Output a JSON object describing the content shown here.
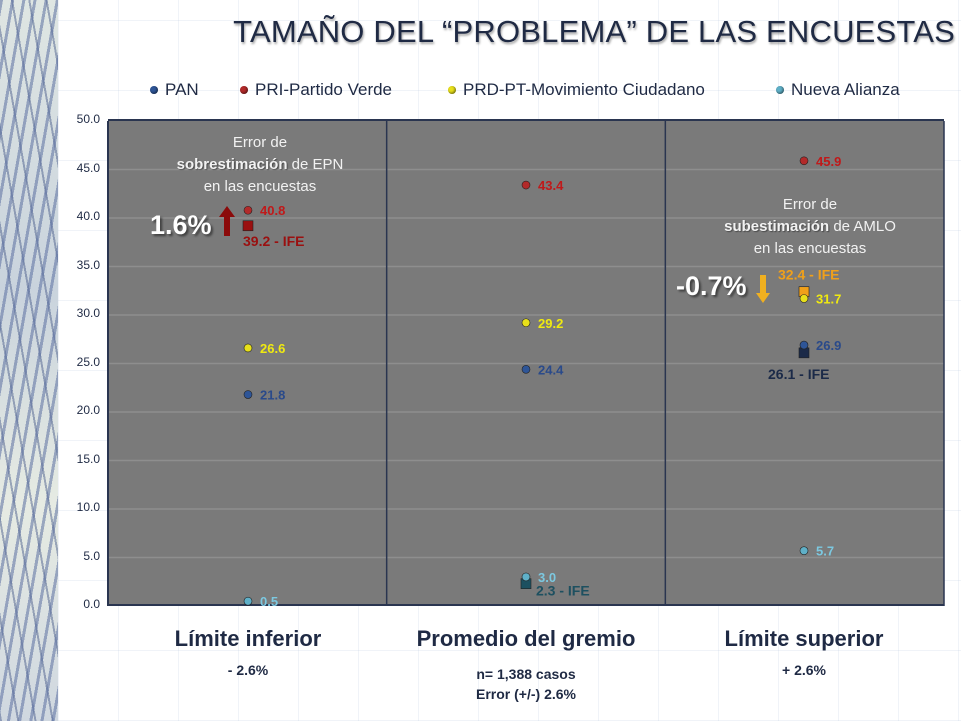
{
  "chart_data": {
    "type": "scatter",
    "title": "TAMAÑO DEL “PROBLEMA” DE LAS ENCUESTAS",
    "xlabel": "",
    "ylabel": "",
    "ylim": [
      0,
      50
    ],
    "yticks": [
      "0.0",
      "5.0",
      "10.0",
      "15.0",
      "20.0",
      "25.0",
      "30.0",
      "35.0",
      "40.0",
      "45.0",
      "50.0"
    ],
    "grid": true,
    "legend_position": "top",
    "categories": [
      "Límite inferior",
      "Promedio del gremio",
      "Límite superior"
    ],
    "category_subtitles": [
      [
        "- 2.6%"
      ],
      [
        "n= 1,388 casos",
        "Error (+/-) 2.6%"
      ],
      [
        "+ 2.6%"
      ]
    ],
    "series": [
      {
        "name": "PAN",
        "color": "#2e5597",
        "label_color": "#2a4a8a",
        "values": [
          21.8,
          24.4,
          26.9
        ]
      },
      {
        "name": "PRI-Partido Verde",
        "color": "#b22a2a",
        "label_color": "#c0191a",
        "values": [
          40.8,
          43.4,
          45.9
        ]
      },
      {
        "name": "PRD-PT-Movimiento Ciudadano",
        "color": "#e8e01a",
        "label_color": "#f0ea10",
        "values": [
          26.6,
          29.2,
          31.7
        ]
      },
      {
        "name": "Nueva Alianza",
        "color": "#5fb0c8",
        "label_color": "#7cc8e0",
        "values": [
          0.5,
          3.0,
          5.7
        ]
      }
    ],
    "ife_markers": [
      {
        "label": "39.2 - IFE",
        "value": 39.2,
        "category": 0,
        "color": "#9a1010"
      },
      {
        "label": "2.3 - IFE",
        "value": 2.3,
        "category": 1,
        "color": "#1d5060"
      },
      {
        "label": "32.4 - IFE",
        "value": 32.4,
        "category": 2,
        "color": "#f0a01a"
      },
      {
        "label": "26.1 - IFE",
        "value": 26.1,
        "category": 2,
        "color": "#1b2a48"
      }
    ],
    "annotations": [
      {
        "id": "over",
        "lines": [
          "Error de",
          "sobrestimación",
          "de EPN",
          "en las encuestas"
        ],
        "percent": "1.6%",
        "arrow": "up",
        "arrow_color": "#8b0a0a"
      },
      {
        "id": "under",
        "lines": [
          "Error de",
          "subestimación",
          "de AMLO",
          "en las encuestas"
        ],
        "percent": "-0.7%",
        "arrow": "down",
        "arrow_color": "#f0b020"
      }
    ]
  }
}
